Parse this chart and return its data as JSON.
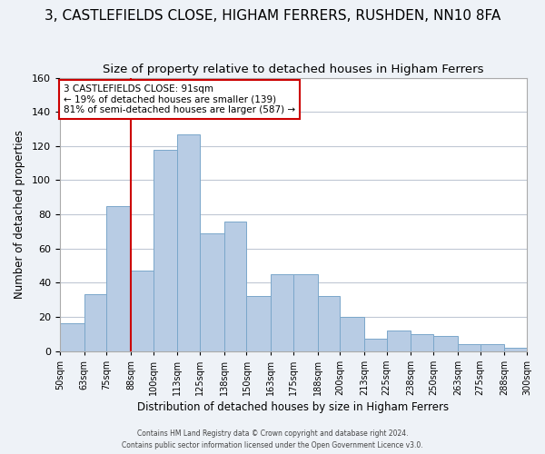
{
  "title": "3, CASTLEFIELDS CLOSE, HIGHAM FERRERS, RUSHDEN, NN10 8FA",
  "subtitle": "Size of property relative to detached houses in Higham Ferrers",
  "xlabel": "Distribution of detached houses by size in Higham Ferrers",
  "ylabel": "Number of detached properties",
  "footer_line1": "Contains HM Land Registry data © Crown copyright and database right 2024.",
  "footer_line2": "Contains public sector information licensed under the Open Government Licence v3.0.",
  "bar_edges": [
    50,
    63,
    75,
    88,
    100,
    113,
    125,
    138,
    150,
    163,
    175,
    188,
    200,
    213,
    225,
    238,
    250,
    263,
    275,
    288,
    300
  ],
  "bar_heights": [
    16,
    33,
    85,
    47,
    118,
    127,
    69,
    76,
    32,
    45,
    45,
    32,
    20,
    7,
    12,
    10,
    9,
    4,
    4,
    2
  ],
  "bar_color": "#b8cce4",
  "bar_edgecolor": "#7ba7ca",
  "vline_x": 88,
  "vline_color": "#cc0000",
  "annotation_text": "3 CASTLEFIELDS CLOSE: 91sqm\n← 19% of detached houses are smaller (139)\n81% of semi-detached houses are larger (587) →",
  "ylim": [
    0,
    160
  ],
  "xlim": [
    50,
    300
  ],
  "bg_color": "#eef2f7",
  "plot_bg_color": "#ffffff",
  "grid_color": "#c0c8d4",
  "title_fontsize": 11,
  "subtitle_fontsize": 9.5,
  "tick_labels": [
    "50sqm",
    "63sqm",
    "75sqm",
    "88sqm",
    "100sqm",
    "113sqm",
    "125sqm",
    "138sqm",
    "150sqm",
    "163sqm",
    "175sqm",
    "188sqm",
    "200sqm",
    "213sqm",
    "225sqm",
    "238sqm",
    "250sqm",
    "263sqm",
    "275sqm",
    "288sqm",
    "300sqm"
  ]
}
